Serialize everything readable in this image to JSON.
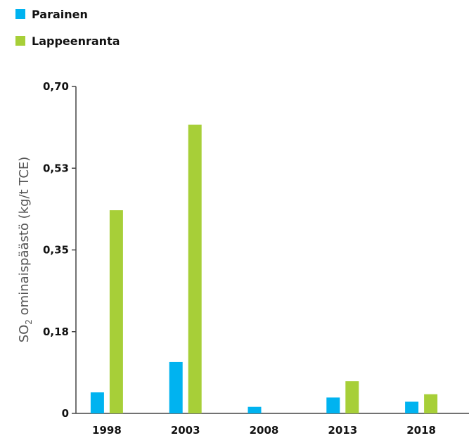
{
  "chart_data": {
    "type": "bar",
    "categories": [
      "1998",
      "2003",
      "2008",
      "2013",
      "2018"
    ],
    "series": [
      {
        "name": "Parainen",
        "color": "#00b3f0",
        "values": [
          0.045,
          0.11,
          0.014,
          0.034,
          0.025
        ]
      },
      {
        "name": "Lappeenranta",
        "color": "#a7cf38",
        "values": [
          0.435,
          0.618,
          0,
          0.069,
          0.041
        ]
      }
    ],
    "title": "",
    "ylabel_prefix": "SO",
    "ylabel_sub": "2",
    "ylabel_rest": " ominaispäästö (kg/t TCE)",
    "yticks": [
      "0",
      "0,18",
      "0,35",
      "0,53",
      "0,70"
    ],
    "ylim": [
      0,
      0.7
    ],
    "grid": false,
    "legend_position": "top-left"
  }
}
